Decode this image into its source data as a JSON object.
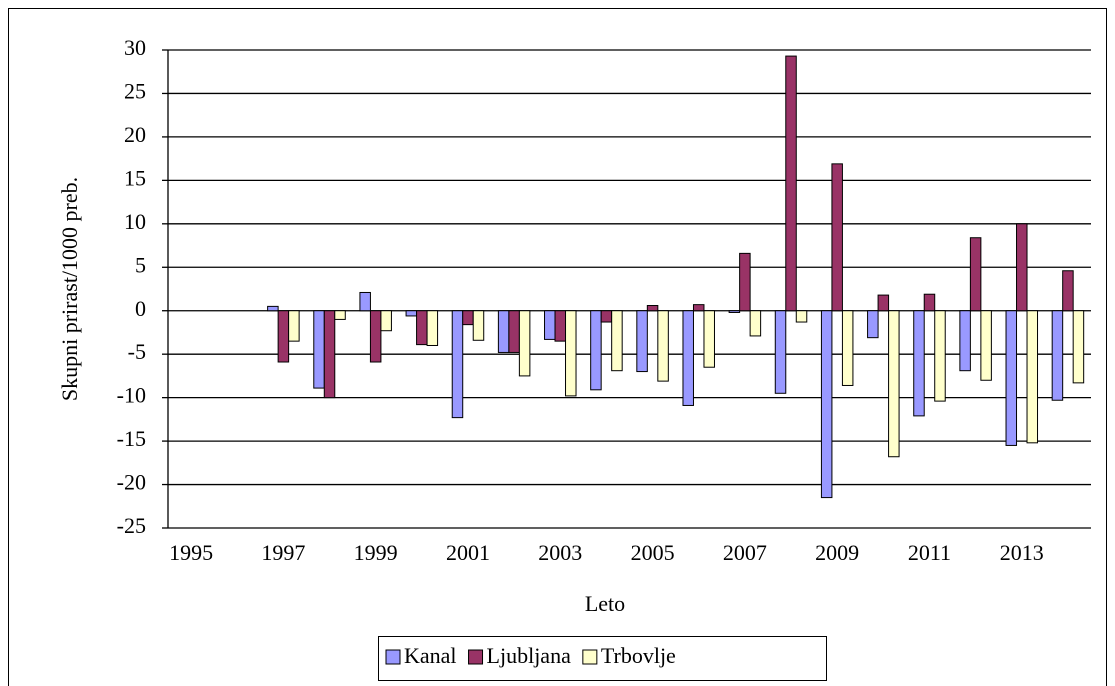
{
  "chart_data": {
    "type": "bar",
    "x_label": "Leto",
    "y_label": "Skupni prirast/1000 preb.",
    "categories": [
      "1995",
      null,
      "1997",
      null,
      "1999",
      null,
      "2001",
      null,
      "2003",
      null,
      "2005",
      null,
      "2007",
      null,
      "2009",
      null,
      "2011",
      null,
      "2013",
      null
    ],
    "series": [
      {
        "name": "Kanal",
        "color": "#9999ff",
        "values": [
          null,
          null,
          0.5,
          -8.9,
          2.1,
          -0.6,
          -12.3,
          -4.8,
          -3.3,
          -9.1,
          -7.0,
          -10.9,
          -0.2,
          -9.5,
          -21.5,
          -3.1,
          -12.1,
          -6.9,
          -15.5,
          -10.3
        ]
      },
      {
        "name": "Ljubljana",
        "color": "#993366",
        "values": [
          null,
          null,
          -5.9,
          -10.0,
          -5.9,
          -3.9,
          -1.6,
          -4.8,
          -3.5,
          -1.3,
          0.6,
          0.7,
          6.6,
          29.3,
          16.9,
          1.8,
          1.9,
          8.4,
          10.0,
          4.6
        ]
      },
      {
        "name": "Trbovlje",
        "color": "#ffffcc",
        "values": [
          null,
          null,
          -3.5,
          -1.0,
          -2.3,
          -4.0,
          -3.4,
          -7.5,
          -9.8,
          -6.9,
          -8.1,
          -6.5,
          -2.9,
          -1.3,
          -8.6,
          -16.8,
          -10.4,
          -8.0,
          -15.2,
          -8.3
        ]
      }
    ],
    "ylim": [
      -25,
      30
    ],
    "yticks": [
      -25,
      -20,
      -15,
      -10,
      -5,
      0,
      5,
      10,
      15,
      20,
      25,
      30
    ],
    "grid": true,
    "legend": "bottom"
  }
}
